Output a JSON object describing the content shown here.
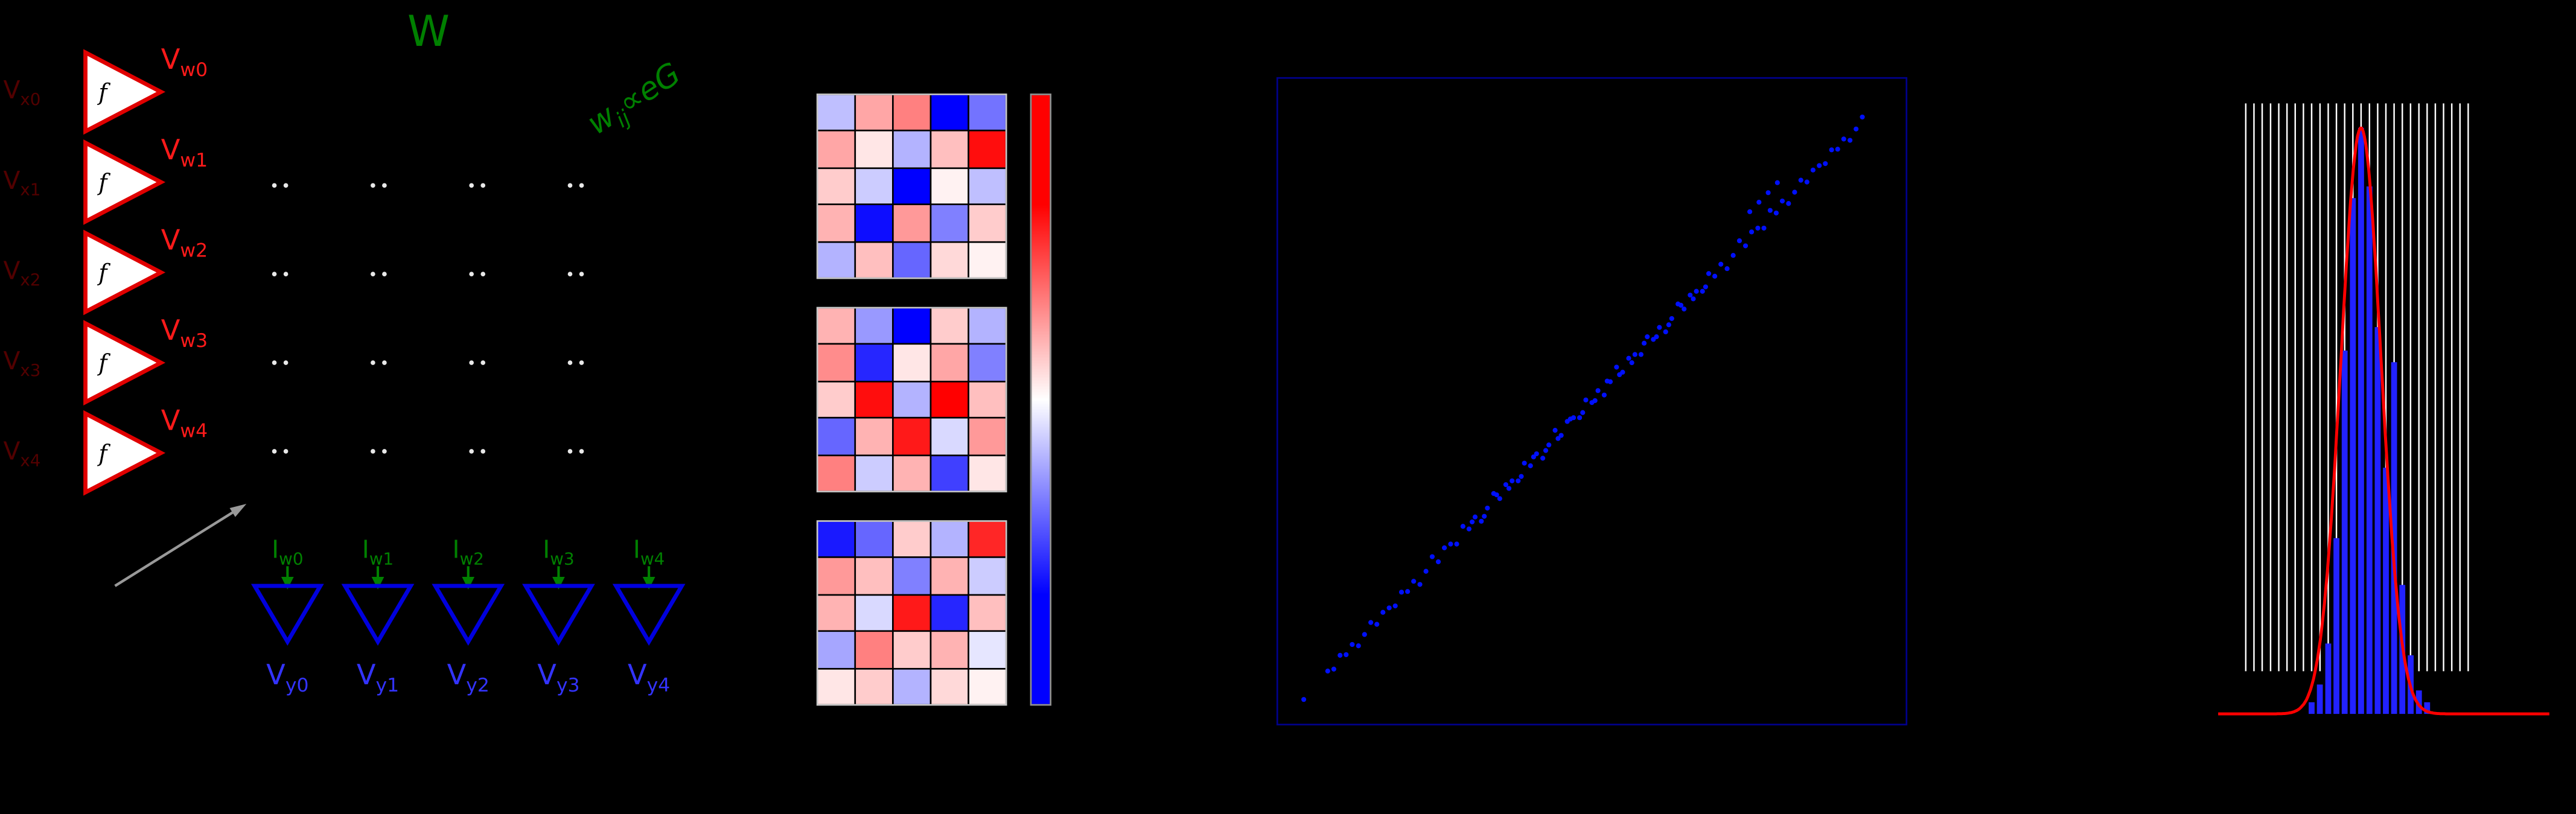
{
  "figure": {
    "background": "#000000",
    "description_colors": {
      "accent_red": "#ff1a1a",
      "accent_green": "#008000",
      "accent_blue": "#3333ff",
      "dark_red": "#520000",
      "scatter_point": "#0010ff",
      "scatter_frame": "#00008b",
      "histogram_bar": "#2222ff",
      "histogram_curve": "#ff0000",
      "histogram_comb": "#ffffff",
      "amp_stroke": "#e00000",
      "output_amp_stroke": "#0000dd",
      "junction_dot": "#e8e8e8",
      "gray_arrow": "#999999"
    }
  },
  "circuit": {
    "title": "W",
    "amp_gain_label": "f",
    "weight_rule": {
      "var": "w",
      "sub": "ij",
      "rest": "∝eG"
    },
    "crossbar": {
      "rows": 4,
      "cols": 4
    },
    "input_labels": [
      {
        "main": "V",
        "sub": "x0"
      },
      {
        "main": "V",
        "sub": "x1"
      },
      {
        "main": "V",
        "sub": "x2"
      },
      {
        "main": "V",
        "sub": "x3"
      },
      {
        "main": "V",
        "sub": "x4"
      }
    ],
    "weight_voltage_labels": [
      {
        "main": "V",
        "sub": "w0"
      },
      {
        "main": "V",
        "sub": "w1"
      },
      {
        "main": "V",
        "sub": "w2"
      },
      {
        "main": "V",
        "sub": "w3"
      },
      {
        "main": "V",
        "sub": "w4"
      }
    ],
    "column_current_labels": [
      {
        "main": "I",
        "sub": "w0"
      },
      {
        "main": "I",
        "sub": "w1"
      },
      {
        "main": "I",
        "sub": "w2"
      },
      {
        "main": "I",
        "sub": "w3"
      },
      {
        "main": "I",
        "sub": "w4"
      }
    ],
    "output_labels": [
      {
        "main": "V",
        "sub": "y0"
      },
      {
        "main": "V",
        "sub": "y1"
      },
      {
        "main": "V",
        "sub": "y2"
      },
      {
        "main": "V",
        "sub": "y3"
      },
      {
        "main": "V",
        "sub": "y4"
      }
    ]
  },
  "chart_data": [
    {
      "type": "heatmap",
      "title": "",
      "vmin": -1,
      "vmax": 1,
      "colormap": "bwr",
      "colorbar_stops": [
        [
          0,
          "#ff0000"
        ],
        [
          0.18,
          "#ff0000"
        ],
        [
          0.5,
          "#ffffff"
        ],
        [
          0.82,
          "#0000ff"
        ],
        [
          1,
          "#0000ff"
        ]
      ],
      "matrices": [
        [
          [
            -0.25,
            0.35,
            0.5,
            -1.0,
            -0.55
          ],
          [
            0.35,
            0.1,
            -0.3,
            0.25,
            0.95
          ],
          [
            0.2,
            -0.2,
            -1.0,
            0.05,
            -0.25
          ],
          [
            0.3,
            -0.95,
            0.4,
            -0.5,
            0.2
          ],
          [
            -0.3,
            0.25,
            -0.6,
            0.15,
            0.05
          ]
        ],
        [
          [
            0.3,
            -0.4,
            -1.0,
            0.2,
            -0.3
          ],
          [
            0.45,
            -0.85,
            0.1,
            0.35,
            -0.5
          ],
          [
            0.2,
            0.95,
            -0.3,
            1.0,
            0.25
          ],
          [
            -0.6,
            0.3,
            0.9,
            -0.15,
            0.4
          ],
          [
            0.5,
            -0.2,
            0.3,
            -0.75,
            0.1
          ]
        ],
        [
          [
            -0.9,
            -0.6,
            0.2,
            -0.3,
            0.85
          ],
          [
            0.4,
            0.25,
            -0.5,
            0.3,
            -0.2
          ],
          [
            0.3,
            -0.15,
            0.9,
            -0.85,
            0.25
          ],
          [
            -0.35,
            0.5,
            0.2,
            0.3,
            -0.1
          ],
          [
            0.1,
            0.2,
            -0.3,
            0.15,
            0.05
          ]
        ]
      ]
    },
    {
      "type": "scatter",
      "title": "",
      "xlim": [
        0,
        1
      ],
      "ylim": [
        0,
        1
      ],
      "point_color": "#0010ff",
      "frame_color": "#00008b",
      "x": [
        0.031,
        0.07,
        0.08,
        0.09,
        0.1,
        0.11,
        0.12,
        0.13,
        0.14,
        0.15,
        0.16,
        0.17,
        0.18,
        0.19,
        0.2,
        0.21,
        0.22,
        0.23,
        0.24,
        0.25,
        0.26,
        0.27,
        0.28,
        0.29,
        0.3,
        0.31,
        0.32,
        0.33,
        0.34,
        0.35,
        0.36,
        0.37,
        0.38,
        0.39,
        0.4,
        0.41,
        0.42,
        0.43,
        0.44,
        0.45,
        0.46,
        0.47,
        0.48,
        0.49,
        0.5,
        0.51,
        0.52,
        0.53,
        0.54,
        0.55,
        0.56,
        0.57,
        0.58,
        0.59,
        0.6,
        0.61,
        0.62,
        0.63,
        0.64,
        0.65,
        0.66,
        0.67,
        0.68,
        0.69,
        0.7,
        0.71,
        0.72,
        0.73,
        0.74,
        0.75,
        0.76,
        0.77,
        0.78,
        0.79,
        0.8,
        0.81,
        0.82,
        0.83,
        0.84,
        0.85,
        0.86,
        0.87,
        0.88,
        0.89,
        0.9,
        0.91,
        0.92,
        0.93,
        0.94,
        0.305,
        0.325,
        0.345,
        0.365,
        0.385,
        0.405,
        0.425,
        0.445,
        0.465,
        0.485,
        0.505,
        0.525,
        0.545,
        0.565,
        0.585,
        0.605,
        0.625,
        0.645,
        0.665,
        0.685,
        0.757,
        0.772,
        0.787,
        0.802
      ],
      "y": [
        0.028,
        0.073,
        0.076,
        0.098,
        0.099,
        0.115,
        0.113,
        0.131,
        0.15,
        0.147,
        0.166,
        0.173,
        0.176,
        0.198,
        0.199,
        0.215,
        0.21,
        0.231,
        0.254,
        0.246,
        0.268,
        0.274,
        0.274,
        0.302,
        0.298,
        0.317,
        0.31,
        0.331,
        0.354,
        0.346,
        0.368,
        0.374,
        0.374,
        0.402,
        0.398,
        0.417,
        0.41,
        0.431,
        0.454,
        0.446,
        0.468,
        0.474,
        0.474,
        0.502,
        0.498,
        0.517,
        0.51,
        0.531,
        0.554,
        0.546,
        0.568,
        0.574,
        0.574,
        0.602,
        0.598,
        0.617,
        0.61,
        0.631,
        0.654,
        0.646,
        0.668,
        0.674,
        0.674,
        0.702,
        0.698,
        0.717,
        0.71,
        0.731,
        0.754,
        0.746,
        0.768,
        0.774,
        0.774,
        0.802,
        0.798,
        0.817,
        0.813,
        0.831,
        0.85,
        0.847,
        0.866,
        0.873,
        0.876,
        0.898,
        0.899,
        0.915,
        0.913,
        0.931,
        0.95,
        0.309,
        0.318,
        0.352,
        0.362,
        0.381,
        0.412,
        0.422,
        0.441,
        0.472,
        0.482,
        0.501,
        0.532,
        0.542,
        0.561,
        0.592,
        0.602,
        0.621,
        0.652,
        0.662,
        0.681,
        0.8,
        0.815,
        0.83,
        0.846
      ]
    },
    {
      "type": "bar",
      "title": "",
      "bars": {
        "x_start": 0.291,
        "spacing": 0.0239,
        "width": 0.017,
        "max_height": 0.96,
        "color": "#2222ff",
        "heights": [
          0.02,
          0.05,
          0.12,
          0.3,
          0.62,
          0.88,
          1.0,
          0.9,
          0.66,
          0.42,
          0.6,
          0.22,
          0.1,
          0.04,
          0.02
        ]
      },
      "comb": {
        "count": 28,
        "x_start": 0.1,
        "x_end": 0.745,
        "y_bottom": 0.07,
        "y_top": 1.0,
        "color": "#ffffff"
      },
      "curve": {
        "shape": "gaussian",
        "center": 0.434,
        "sigma": 0.058,
        "amplitude": 0.96,
        "x_min": 0.02,
        "x_max": 0.98,
        "color": "#ff0000"
      }
    }
  ]
}
